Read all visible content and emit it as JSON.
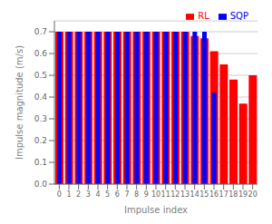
{
  "chart_data": {
    "type": "bar",
    "categories": [
      "0",
      "1",
      "2",
      "3",
      "4",
      "5",
      "6",
      "7",
      "8",
      "9",
      "10",
      "11",
      "12",
      "13",
      "14",
      "15",
      "16",
      "17",
      "18",
      "19",
      "20"
    ],
    "series": [
      {
        "name": "RL",
        "color": "#FF0000",
        "values": [
          0.7,
          0.7,
          0.7,
          0.7,
          0.7,
          0.7,
          0.7,
          0.7,
          0.7,
          0.7,
          0.7,
          0.7,
          0.7,
          0.7,
          0.68,
          0.67,
          0.61,
          0.55,
          0.48,
          0.37,
          0.5
        ]
      },
      {
        "name": "SQP",
        "color": "#0000FF",
        "values": [
          0.7,
          0.7,
          0.7,
          0.7,
          0.7,
          0.7,
          0.7,
          0.7,
          0.7,
          0.7,
          0.7,
          0.7,
          0.7,
          0.7,
          0.7,
          0.7,
          0.42,
          0.0,
          0.0,
          0.0,
          0.0
        ]
      }
    ],
    "xlabel": "Impulse index",
    "ylabel": "Impulse magnitude (m/s)",
    "ylim": [
      0.0,
      0.75
    ],
    "yticks": [
      {
        "value": 0.0,
        "label": "0.0"
      },
      0.1,
      0.2,
      0.3,
      0.4,
      0.5,
      0.6,
      0.7
    ],
    "grid": true,
    "legend": "upper right"
  }
}
